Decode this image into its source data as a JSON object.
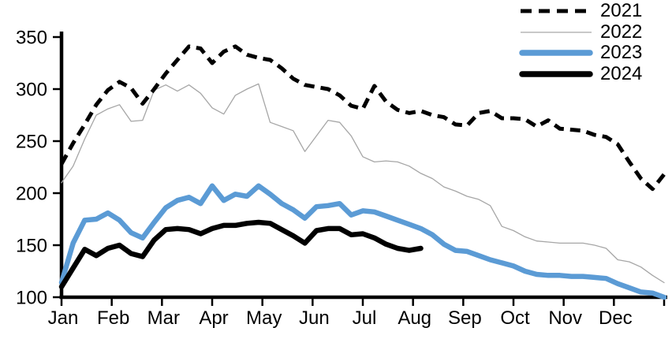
{
  "chart_data": {
    "type": "line",
    "title": "",
    "x_axis": {
      "categories": [
        "Jan",
        "Feb",
        "Mar",
        "Apr",
        "May",
        "Jun",
        "Jul",
        "Aug",
        "Sep",
        "Oct",
        "Nov",
        "Dec"
      ],
      "resolution": "weekly",
      "points_per_year": 53
    },
    "y_axis": {
      "ticks": [
        100,
        150,
        200,
        250,
        300,
        350
      ],
      "range": [
        100,
        365
      ]
    },
    "grid": false,
    "legend_position": "top-right",
    "axis_color": "#000000",
    "series": [
      {
        "name": "2021",
        "color": "#000000",
        "style": "dashed",
        "width": 5,
        "values": [
          228,
          248,
          266,
          285,
          299,
          307,
          301,
          286,
          300,
          315,
          328,
          341,
          339,
          325,
          336,
          341,
          333,
          330,
          328,
          320,
          310,
          304,
          302,
          300,
          294,
          284,
          281,
          303,
          288,
          280,
          277,
          279,
          275,
          273,
          266,
          265,
          277,
          279,
          272,
          272,
          271,
          264,
          270,
          262,
          261,
          260,
          256,
          254,
          247,
          230,
          214,
          204,
          218
        ]
      },
      {
        "name": "2022",
        "color": "#a6a6a6",
        "style": "solid",
        "width": 1.3,
        "values": [
          210,
          226,
          252,
          275,
          281,
          285,
          269,
          270,
          299,
          304,
          298,
          304,
          296,
          282,
          276,
          294,
          300,
          305,
          268,
          264,
          260,
          240,
          255,
          270,
          268,
          255,
          235,
          230,
          231,
          230,
          226,
          219,
          214,
          206,
          202,
          197,
          194,
          188,
          168,
          164,
          158,
          154,
          153,
          152,
          152,
          152,
          150,
          147,
          136,
          134,
          129,
          121,
          114
        ]
      },
      {
        "name": "2023",
        "color": "#5b9bd5",
        "style": "solid",
        "width": 6.5,
        "values": [
          114,
          152,
          174,
          175,
          181,
          174,
          162,
          157,
          172,
          186,
          193,
          196,
          190,
          207,
          193,
          199,
          197,
          207,
          199,
          190,
          184,
          176,
          187,
          188,
          190,
          179,
          183,
          182,
          178,
          174,
          170,
          166,
          160,
          151,
          145,
          144,
          140,
          136,
          133,
          130,
          125,
          122,
          121,
          121,
          120,
          120,
          119,
          118,
          113,
          109,
          105,
          104,
          100
        ]
      },
      {
        "name": "2024",
        "color": "#000000",
        "style": "solid",
        "width": 6.5,
        "values": [
          110,
          128,
          146,
          140,
          147,
          150,
          142,
          139,
          155,
          165,
          166,
          165,
          161,
          166,
          169,
          169,
          171,
          172,
          171,
          165,
          159,
          152,
          164,
          166,
          166,
          160,
          161,
          157,
          151,
          147,
          145,
          147
        ]
      }
    ]
  }
}
